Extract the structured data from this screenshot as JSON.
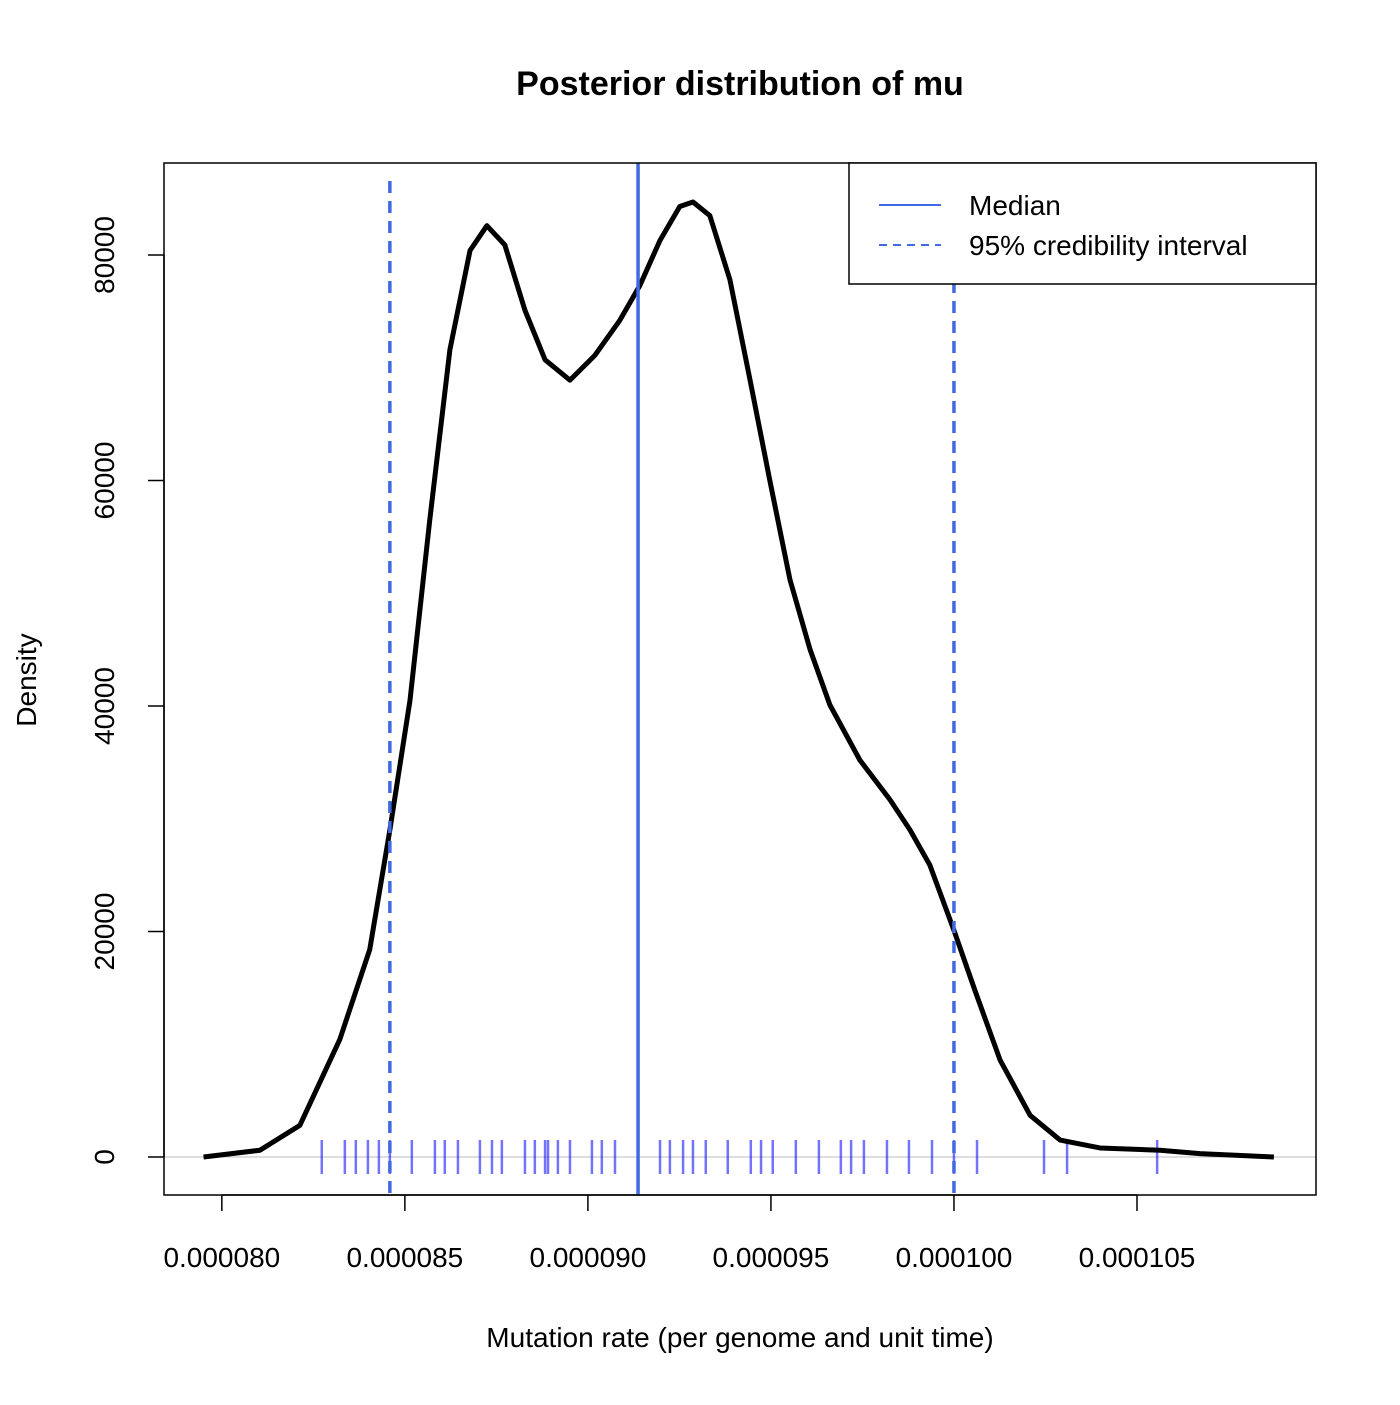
{
  "chart_data": {
    "type": "density",
    "title": "Posterior distribution of mu",
    "xlabel": "Mutation rate (per genome and unit time)",
    "ylabel": "Density",
    "x": [
      7.95e-05,
      8.104e-05,
      8.213e-05,
      8.322e-05,
      8.404e-05,
      8.459e-05,
      8.514e-05,
      8.568e-05,
      8.623e-05,
      8.678e-05,
      8.724e-05,
      8.773e-05,
      8.828e-05,
      8.883e-05,
      8.951e-05,
      9.019e-05,
      9.087e-05,
      9.142e-05,
      9.197e-05,
      9.251e-05,
      9.287e-05,
      9.333e-05,
      9.388e-05,
      9.443e-05,
      9.497e-05,
      9.552e-05,
      9.607e-05,
      9.661e-05,
      9.743e-05,
      9.825e-05,
      9.88e-05,
      9.934e-05,
      0.0001,
      0.00010057,
      0.00010126,
      0.00010208,
      0.0001029,
      0.00010399,
      0.00010563,
      0.00010672,
      0.00010874
    ],
    "values": [
      0,
      600,
      2800,
      10400,
      18400,
      29000,
      40500,
      56500,
      71600,
      80400,
      82600,
      80900,
      75100,
      70700,
      68900,
      71100,
      74200,
      77300,
      81300,
      84300,
      84700,
      83500,
      77800,
      68900,
      60000,
      51200,
      45000,
      40100,
      35200,
      31700,
      29000,
      25900,
      20100,
      14800,
      8600,
      3700,
      1500,
      800,
      600,
      300,
      0
    ],
    "color": "#000000",
    "rug": [
      8.273e-05,
      8.336e-05,
      8.366e-05,
      8.399e-05,
      8.429e-05,
      8.459e-05,
      8.519e-05,
      8.582e-05,
      8.609e-05,
      8.645e-05,
      8.705e-05,
      8.738e-05,
      8.765e-05,
      8.828e-05,
      8.855e-05,
      8.883e-05,
      8.891e-05,
      8.918e-05,
      8.951e-05,
      9.011e-05,
      9.038e-05,
      9.074e-05,
      9.197e-05,
      9.224e-05,
      9.26e-05,
      9.287e-05,
      9.322e-05,
      9.382e-05,
      9.445e-05,
      9.473e-05,
      9.505e-05,
      9.568e-05,
      9.631e-05,
      9.691e-05,
      9.719e-05,
      9.754e-05,
      9.817e-05,
      9.877e-05,
      9.94e-05,
      0.0001,
      0.00010063,
      0.00010246,
      0.00010309,
      0.00010555
    ],
    "rug_color": "#0000ff",
    "median": 9.137e-05,
    "credible_interval": [
      8.459e-05,
      0.0001
    ],
    "line_color": "#4169e1",
    "legend": {
      "position": "topright",
      "items": [
        "Median",
        "95% credibility interval"
      ]
    },
    "xlim": [
      7.842e-05,
      0.00010989
    ],
    "ylim": [
      -3370,
      88160
    ],
    "xticks": [
      {
        "value": 8e-05,
        "label": "0.000080"
      },
      {
        "value": 8.5e-05,
        "label": "0.000085"
      },
      {
        "value": 9e-05,
        "label": "0.000090"
      },
      {
        "value": 9.5e-05,
        "label": "0.000095"
      },
      {
        "value": 0.0001,
        "label": "0.000100"
      },
      {
        "value": 0.000105,
        "label": "0.000105"
      }
    ],
    "yticks": [
      0,
      20000,
      40000,
      60000,
      80000
    ]
  }
}
